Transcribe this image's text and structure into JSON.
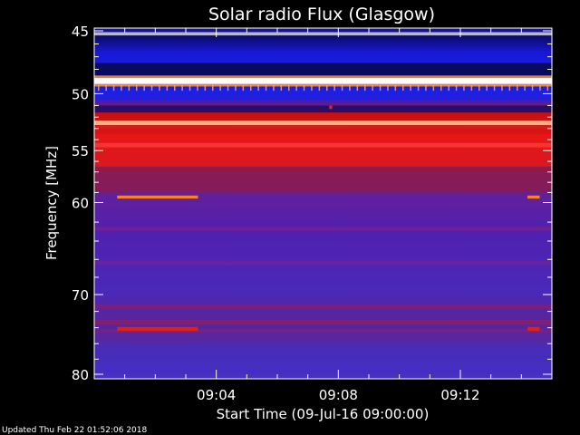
{
  "chart_data": {
    "type": "heatmap",
    "title": "Solar radio Flux (Glasgow)",
    "xlabel": "Start Time (09-Jul-16 09:00:00)",
    "ylabel": "Frequency [MHz]",
    "x_unit": "minutes after 09:00:00",
    "xlim": [
      0,
      15
    ],
    "ylim": [
      45,
      80
    ],
    "y_scale": "log",
    "y_inverted": true,
    "x_ticks": [
      {
        "value": 4,
        "label": "09:04"
      },
      {
        "value": 8,
        "label": "09:08"
      },
      {
        "value": 12,
        "label": "09:12"
      }
    ],
    "y_ticks": [
      {
        "value": 45,
        "label": "45"
      },
      {
        "value": 50,
        "label": "50"
      },
      {
        "value": 55,
        "label": "55"
      },
      {
        "value": 60,
        "label": "60"
      },
      {
        "value": 70,
        "label": "70"
      },
      {
        "value": 80,
        "label": "80"
      }
    ],
    "colors": {
      "background": "#000000",
      "low": "#1010c8",
      "mid": "#5020a0",
      "high": "#e01818",
      "peak": "#ffffff",
      "hot": "#ff8020"
    }
  },
  "footer": "Updated Thu Feb 22 01:52:06 2018"
}
